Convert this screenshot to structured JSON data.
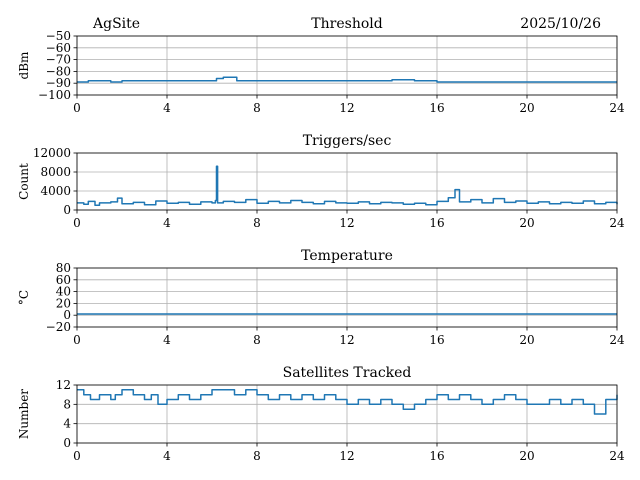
{
  "header": {
    "site": "AgSite",
    "date": "2025/10/26"
  },
  "colors": {
    "series": "#1f77b4",
    "grid": "#b0b0b0",
    "axes": "#000000"
  },
  "chart_data": [
    {
      "type": "line",
      "title": "Threshold",
      "xlabel": "",
      "ylabel": "dBm",
      "xlim": [
        0,
        24
      ],
      "ylim": [
        -100,
        -50
      ],
      "xticks": [
        "0",
        "4",
        "8",
        "12",
        "16",
        "20",
        "24"
      ],
      "yticks": [
        "−50",
        "−60",
        "−70",
        "−80",
        "−90",
        "−100"
      ],
      "grid": true,
      "series": [
        {
          "x": [
            0,
            0.5,
            1,
            1.5,
            2,
            3,
            4,
            5,
            6,
            6.2,
            6.5,
            7,
            7.1,
            8,
            9,
            10,
            11,
            12,
            13,
            14,
            14.5,
            15,
            16,
            17,
            18,
            19,
            20,
            21,
            22,
            23,
            24
          ],
          "y": [
            -89,
            -88,
            -88,
            -89,
            -88,
            -88,
            -88,
            -88,
            -88,
            -86,
            -85,
            -85,
            -88,
            -88,
            -88,
            -88,
            -88,
            -88,
            -88,
            -87,
            -87,
            -88,
            -89,
            -89,
            -89,
            -89,
            -89,
            -89,
            -89,
            -89,
            -89
          ]
        }
      ]
    },
    {
      "type": "line",
      "title": "Triggers/sec",
      "xlabel": "",
      "ylabel": "Count",
      "xlim": [
        0,
        24
      ],
      "ylim": [
        0,
        12000
      ],
      "xticks": [
        "0",
        "4",
        "8",
        "12",
        "16",
        "20",
        "24"
      ],
      "yticks": [
        "12000",
        "8000",
        "4000",
        "0"
      ],
      "grid": true,
      "series": [
        {
          "x": [
            0,
            0.3,
            0.5,
            0.8,
            1,
            1.5,
            1.8,
            2,
            2.5,
            3,
            3.5,
            4,
            4.5,
            5,
            5.5,
            6,
            6.15,
            6.2,
            6.25,
            6.5,
            7,
            7.5,
            8,
            8.5,
            9,
            9.5,
            10,
            10.5,
            11,
            11.5,
            12,
            12.5,
            13,
            13.5,
            14,
            14.5,
            15,
            15.5,
            16,
            16.5,
            16.8,
            17,
            17.5,
            18,
            18.5,
            19,
            19.5,
            20,
            20.5,
            21,
            21.5,
            22,
            22.5,
            23,
            23.5,
            24
          ],
          "y": [
            1500,
            1200,
            1800,
            1000,
            1500,
            1700,
            2500,
            1300,
            1600,
            1100,
            1900,
            1400,
            1600,
            1200,
            1700,
            1500,
            2000,
            9200,
            1500,
            1800,
            1600,
            2200,
            1400,
            1800,
            1500,
            2000,
            1600,
            1300,
            1800,
            1500,
            1400,
            1700,
            1300,
            1600,
            1500,
            1200,
            1400,
            1100,
            1800,
            2600,
            4300,
            1700,
            2200,
            1500,
            2400,
            1600,
            1900,
            1400,
            1700,
            1300,
            1600,
            1400,
            1900,
            1300,
            1600,
            1200
          ]
        }
      ]
    },
    {
      "type": "line",
      "title": "Temperature",
      "xlabel": "",
      "ylabel": "°C",
      "xlim": [
        0,
        24
      ],
      "ylim": [
        -20,
        80
      ],
      "xticks": [
        "0",
        "4",
        "8",
        "12",
        "16",
        "20",
        "24"
      ],
      "yticks": [
        "80",
        "60",
        "40",
        "20",
        "0",
        "−20"
      ],
      "grid": true,
      "series": [
        {
          "x": [
            0,
            24
          ],
          "y": [
            2,
            2
          ]
        }
      ]
    },
    {
      "type": "line",
      "title": "Satellites Tracked",
      "xlabel": "",
      "ylabel": "Number",
      "xlim": [
        0,
        24
      ],
      "ylim": [
        0,
        12
      ],
      "xticks": [
        "0",
        "4",
        "8",
        "12",
        "16",
        "20",
        "24"
      ],
      "yticks": [
        "12",
        "8",
        "4",
        "0"
      ],
      "grid": true,
      "series": [
        {
          "x": [
            0,
            0.3,
            0.6,
            1,
            1.5,
            1.7,
            2,
            2.5,
            3,
            3.3,
            3.6,
            4,
            4.5,
            5,
            5.5,
            6,
            6.5,
            7,
            7.5,
            8,
            8.5,
            9,
            9.5,
            10,
            10.5,
            11,
            11.5,
            12,
            12.5,
            13,
            13.5,
            14,
            14.5,
            15,
            15.5,
            16,
            16.5,
            17,
            17.5,
            18,
            18.5,
            19,
            19.5,
            20,
            20.5,
            21,
            21.5,
            22,
            22.5,
            23,
            23.5,
            24
          ],
          "y": [
            11,
            10,
            9,
            10,
            9,
            10,
            11,
            10,
            9,
            10,
            8,
            9,
            10,
            9,
            10,
            11,
            11,
            10,
            11,
            10,
            9,
            10,
            9,
            10,
            9,
            10,
            9,
            8,
            9,
            8,
            9,
            8,
            7,
            8,
            9,
            10,
            9,
            10,
            9,
            8,
            9,
            10,
            9,
            8,
            8,
            9,
            8,
            9,
            8,
            6,
            9,
            10
          ]
        }
      ]
    }
  ]
}
